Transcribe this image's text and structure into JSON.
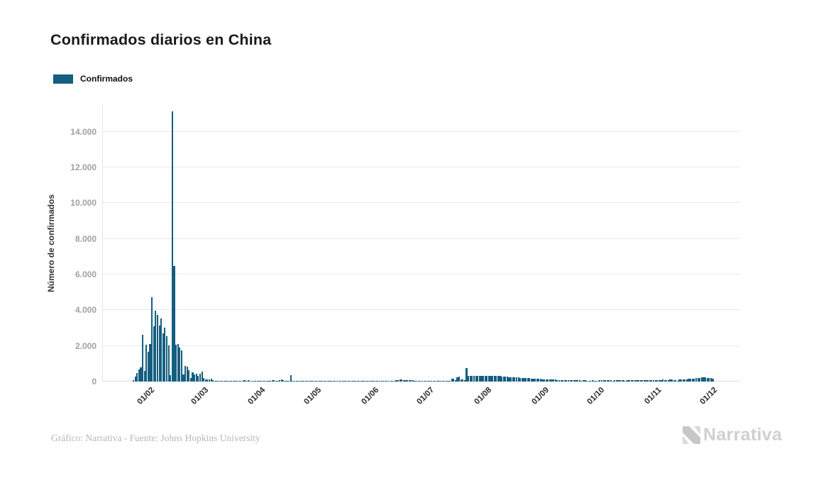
{
  "header": {
    "title": "Confirmados diarios en China"
  },
  "legend": {
    "label": "Confirmados",
    "swatch_color": "#155e80"
  },
  "chart_data": {
    "type": "bar",
    "title": "Confirmados diarios en China",
    "xlabel": "",
    "ylabel": "Número de confirmados",
    "ylim": [
      0,
      15500
    ],
    "grid": "horizontal",
    "bar_color": "#155e80",
    "legend_position": "top-left",
    "y_ticks": [
      0,
      2000,
      4000,
      6000,
      8000,
      10000,
      12000,
      14000
    ],
    "y_tick_labels": [
      "0",
      "2.000",
      "4.000",
      "6.000",
      "8.000",
      "10.000",
      "12.000",
      "14.000"
    ],
    "x_ticks": [
      {
        "label": "01/02",
        "day": 9
      },
      {
        "label": "01/03",
        "day": 38
      },
      {
        "label": "01/04",
        "day": 69
      },
      {
        "label": "01/05",
        "day": 99
      },
      {
        "label": "01/06",
        "day": 130
      },
      {
        "label": "01/07",
        "day": 160
      },
      {
        "label": "01/08",
        "day": 191
      },
      {
        "label": "01/09",
        "day": 222
      },
      {
        "label": "01/10",
        "day": 252
      },
      {
        "label": "01/11",
        "day": 283
      },
      {
        "label": "01/12",
        "day": 313
      }
    ],
    "series": [
      {
        "name": "Confirmados",
        "cadence": "daily",
        "values": [
          95,
          277,
          486,
          669,
          802,
          2632,
          578,
          2054,
          1661,
          2089,
          4739,
          3086,
          3991,
          3733,
          3147,
          3523,
          2704,
          3015,
          2525,
          2032,
          373,
          15136,
          6463,
          2055,
          2100,
          1893,
          1752,
          395,
          894,
          823,
          648,
          214,
          508,
          406,
          433,
          327,
          427,
          573,
          202,
          125,
          119,
          139,
          143,
          99,
          44,
          40,
          19,
          24,
          15,
          8,
          11,
          20,
          16,
          21,
          13,
          34,
          39,
          41,
          46,
          39,
          78,
          47,
          67,
          55,
          54,
          45,
          31,
          48,
          36,
          35,
          31,
          19,
          30,
          39,
          32,
          62,
          63,
          42,
          46,
          99,
          108,
          89,
          46,
          46,
          26,
          352,
          27,
          30,
          11,
          30,
          10,
          6,
          12,
          11,
          5,
          3,
          6,
          22,
          4,
          12,
          2,
          3,
          1,
          2,
          6,
          1,
          1,
          14,
          17,
          7,
          1,
          6,
          3,
          8,
          5,
          7,
          6,
          5,
          5,
          2,
          4,
          3,
          11,
          7,
          7,
          3,
          2,
          4,
          2,
          2,
          16,
          5,
          1,
          4,
          5,
          8,
          4,
          6,
          15,
          11,
          18,
          57,
          70,
          85,
          110,
          105,
          95,
          90,
          80,
          75,
          70,
          65,
          55,
          50,
          40,
          35,
          30,
          25,
          20,
          19,
          15,
          12,
          10,
          8,
          12,
          14,
          10,
          12,
          15,
          18,
          20,
          24,
          160,
          150,
          90,
          240,
          265,
          120,
          100,
          90,
          760,
          330,
          310,
          300,
          320,
          310,
          300,
          315,
          330,
          325,
          310,
          330,
          325,
          320,
          315,
          310,
          320,
          315,
          305,
          295,
          285,
          275,
          265,
          255,
          250,
          245,
          240,
          230,
          225,
          215,
          210,
          200,
          195,
          185,
          180,
          170,
          165,
          155,
          150,
          145,
          140,
          135,
          130,
          125,
          120,
          115,
          110,
          105,
          100,
          95,
          90,
          85,
          80,
          85,
          90,
          80,
          75,
          70,
          75,
          80,
          70,
          65,
          60,
          65,
          70,
          60,
          55,
          60,
          65,
          55,
          50,
          55,
          85,
          80,
          70,
          65,
          75,
          80,
          70,
          60,
          70,
          75,
          85,
          90,
          75,
          70,
          60,
          70,
          80,
          65,
          70,
          85,
          90,
          80,
          70,
          65,
          80,
          85,
          70,
          80,
          95,
          90,
          80,
          85,
          90,
          95,
          100,
          90,
          85,
          95,
          105,
          100,
          95,
          90,
          15,
          100,
          110,
          115,
          120,
          130,
          140,
          150,
          160,
          170,
          180,
          200,
          215,
          225,
          230,
          220,
          210,
          200,
          190,
          175
        ]
      }
    ]
  },
  "footer": {
    "credit": "Gráfico: Narrativa - Fuente: Johns Hopkins University"
  },
  "branding": {
    "logo_text": "Narrativa",
    "logo_color": "#d0d0d0"
  }
}
